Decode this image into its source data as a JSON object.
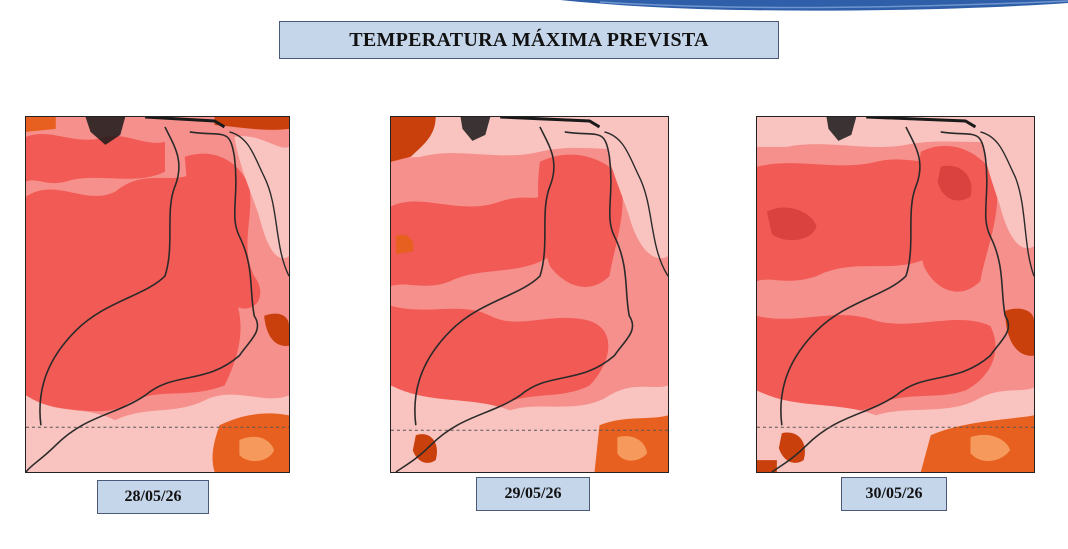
{
  "header": {
    "title": "TEMPERATURA MÁXIMA PREVISTA"
  },
  "colors": {
    "title_box_bg": "#c5d5ea",
    "light_pink": "#f9c4c0",
    "salmon": "#f6908c",
    "red": "#f25a55",
    "dark_red": "#d9423e",
    "orange": "#e8601f",
    "dark_orange": "#c9400c",
    "border_line": "#2a2a2a"
  },
  "maps": [
    {
      "date": "28/05/26"
    },
    {
      "date": "29/05/26"
    },
    {
      "date": "30/05/26"
    }
  ]
}
